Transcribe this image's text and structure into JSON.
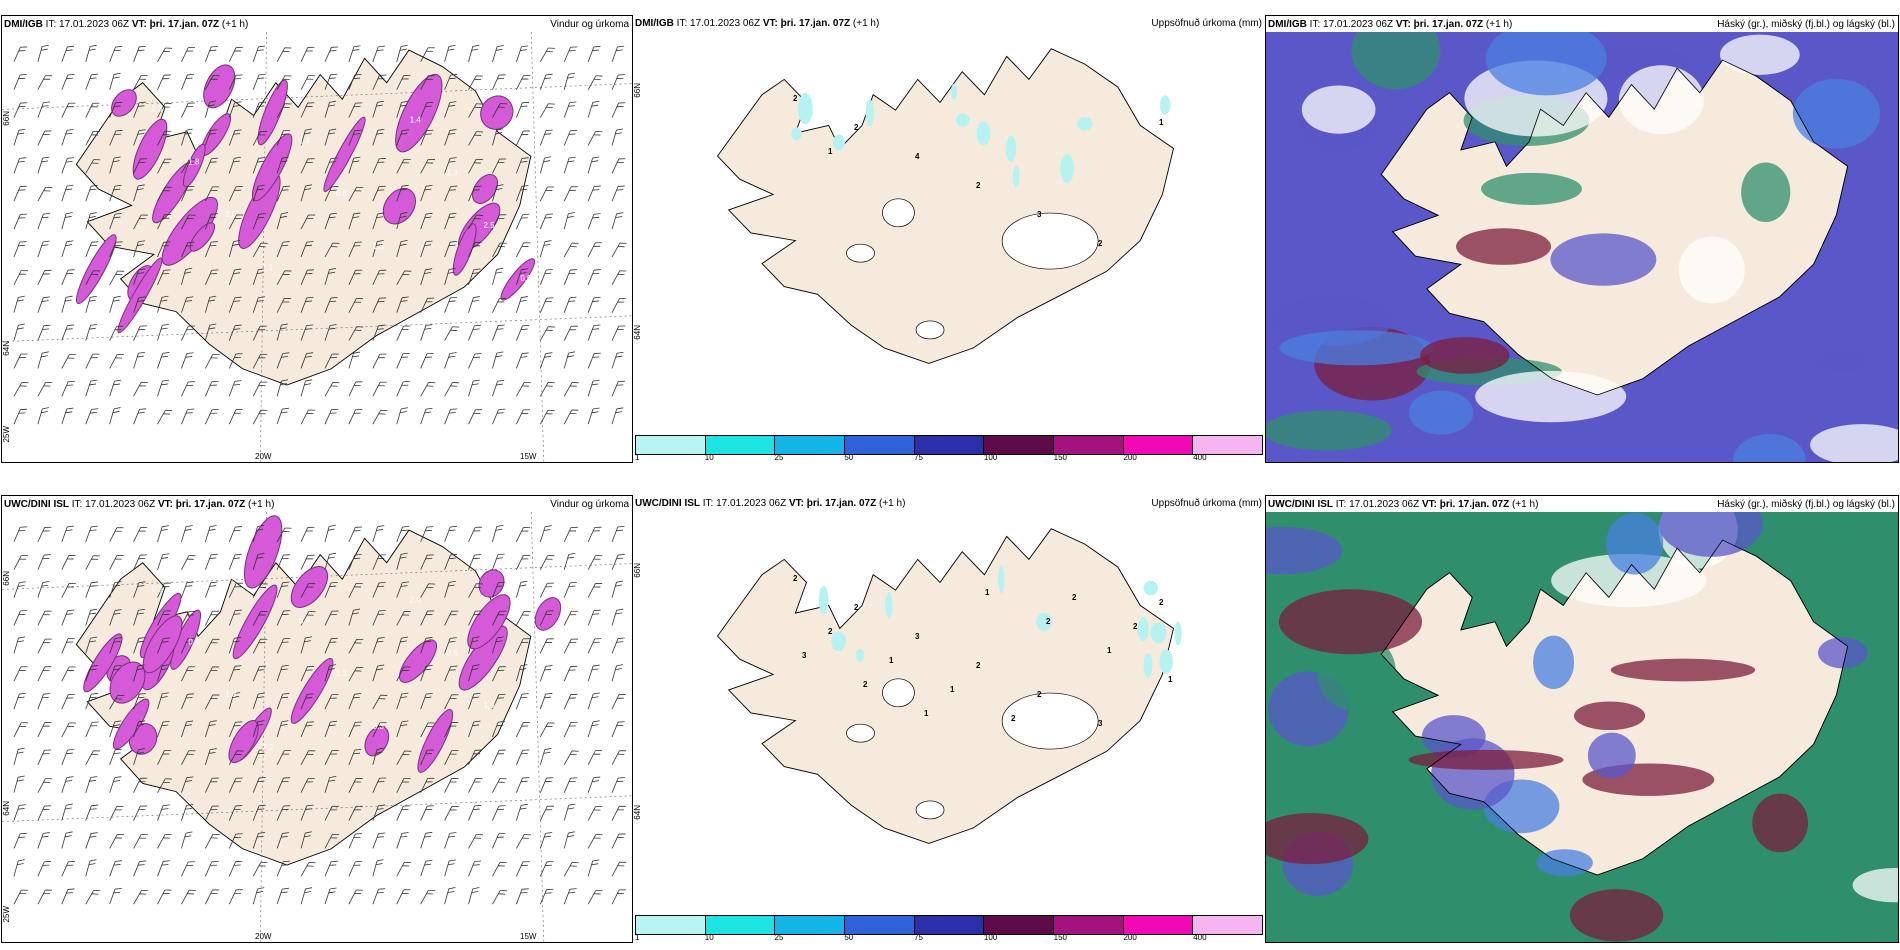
{
  "colors": {
    "land": "#f6eadc",
    "land_dark": "#e9d6c2",
    "coast": "#000000",
    "precip_light": "#b7f2f2",
    "wind_precip": "#d45ad8",
    "wind_precip_dark": "#7a2f7a",
    "cloud_high": "#2f8f6c",
    "cloud_mid": "#5a57c8",
    "cloud_low": "#7b1d3d"
  },
  "rows": [
    {
      "model_label": "DMI/IGB",
      "it_label": "IT: 17.01.2023 06Z",
      "vt_label": "VT: þri. 17.jan. 07Z",
      "lead_label": "(+1 h)"
    },
    {
      "model_label": "UWC/DINI ISL",
      "it_label": "IT: 17.01.2023 06Z",
      "vt_label": "VT: þri. 17.jan. 07Z",
      "lead_label": "(+1 h)"
    }
  ],
  "panel_titles": {
    "wind": "Vindur og úrkoma",
    "precip": "Uppsöfnuð úrkoma (mm)",
    "cloud": "Háský (gr.), miðský (fj.bl.) og lágský (bl.)"
  },
  "grid_labels": {
    "lat_66": "66N",
    "lat_64": "64N",
    "lon_25": "25W",
    "lon_20": "20W",
    "lon_15": "15W"
  },
  "colorbar": {
    "labels": [
      "1",
      "10",
      "25",
      "50",
      "75",
      "100",
      "150",
      "200",
      "400"
    ],
    "colors": [
      "#b7f5f5",
      "#1ee3e3",
      "#14b4e6",
      "#2c63d8",
      "#2b2fa8",
      "#5e0b4a",
      "#a3127f",
      "#f009b5",
      "#f5b5f0"
    ]
  },
  "precip_points": {
    "top": [
      "2",
      "2",
      "4",
      "2",
      "3",
      "2",
      "1",
      "1"
    ],
    "bottom": [
      "2",
      "2",
      "3",
      "2",
      "2",
      "3",
      "2",
      "2",
      "1",
      "1",
      "2",
      "2",
      "2",
      "3",
      "2",
      "1",
      "1",
      "2",
      "1",
      "1"
    ]
  },
  "wind_values": {
    "top": [
      "2.3",
      "1.8",
      "2.0",
      "1.1",
      "1.4",
      "0.8",
      "1.5",
      "1.4",
      "1.3",
      "2.5",
      "0.9"
    ],
    "bottom": [
      "0.3",
      "0.4",
      "1.8",
      "2.2",
      "0.9",
      "1.3",
      "0.3",
      "2.0",
      "0.5",
      "1.0",
      "0.6",
      "0.3"
    ]
  }
}
